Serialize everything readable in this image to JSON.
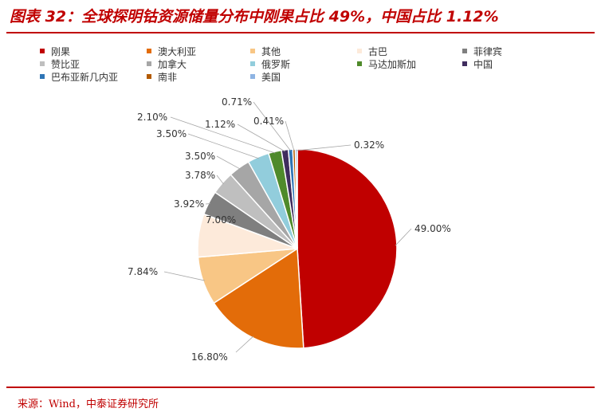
{
  "title": "图表 32：全球探明钴资源储量分布中刚果占比 49%，中国占比 1.12%",
  "source": "来源：Wind，中泰证券研究所",
  "chart_data": {
    "type": "pie",
    "title": "",
    "legend_position": "top",
    "slices": [
      {
        "name": "刚果",
        "value": 49.0,
        "label": "49.00%",
        "color": "#c00000"
      },
      {
        "name": "澳大利亚",
        "value": 16.8,
        "label": "16.80%",
        "color": "#e36c09"
      },
      {
        "name": "其他",
        "value": 7.84,
        "label": "7.84%",
        "color": "#f8c685"
      },
      {
        "name": "古巴",
        "value": 7.0,
        "label": "7.00%",
        "color": "#fdeada"
      },
      {
        "name": "菲律宾",
        "value": 3.92,
        "label": "3.92%",
        "color": "#7f7f7f"
      },
      {
        "name": "赞比亚",
        "value": 3.78,
        "label": "3.78%",
        "color": "#bfbfbf"
      },
      {
        "name": "加拿大",
        "value": 3.5,
        "label": "3.50%",
        "color": "#a6a6a6"
      },
      {
        "name": "俄罗斯",
        "value": 3.5,
        "label": "3.50%",
        "color": "#92cddc"
      },
      {
        "name": "马达加斯加",
        "value": 2.1,
        "label": "2.10%",
        "color": "#4f8a2b"
      },
      {
        "name": "中国",
        "value": 1.12,
        "label": "1.12%",
        "color": "#3f2d5e"
      },
      {
        "name": "巴布亚新几内亚",
        "value": 0.71,
        "label": "0.71%",
        "color": "#2e75b6"
      },
      {
        "name": "南非",
        "value": 0.41,
        "label": "0.41%",
        "color": "#b35a00"
      },
      {
        "name": "美国",
        "value": 0.32,
        "label": "0.32%",
        "color": "#8eb4e3"
      }
    ]
  }
}
